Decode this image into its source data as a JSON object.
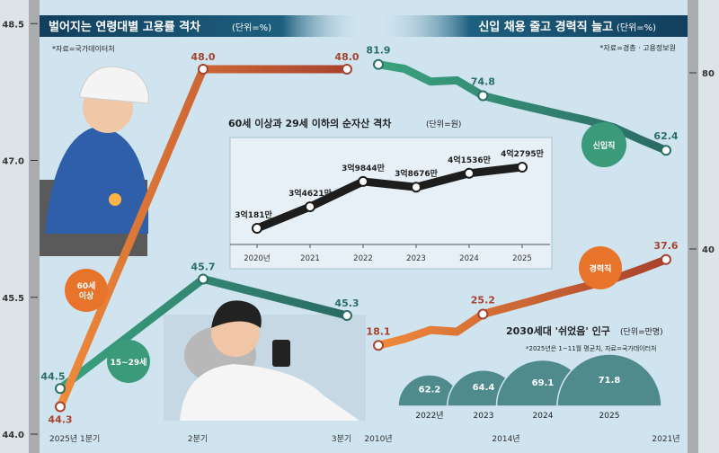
{
  "chart_data": [
    {
      "type": "line",
      "title": "벌어지는 연령대별 고용률 격차",
      "unit": "(단위=%)",
      "source": "*자료=국가데이터처",
      "categories": [
        "2025년 1분기",
        "2분기",
        "3분기"
      ],
      "series": [
        {
          "name": "60세 이상",
          "values": [
            44.3,
            48.0,
            48.0
          ],
          "labels": [
            "44.3",
            "48.0",
            "48.0"
          ],
          "color": "#e8732a"
        },
        {
          "name": "15~29세",
          "values": [
            44.5,
            45.7,
            45.3
          ],
          "labels": [
            "44.5",
            "45.7",
            "45.3"
          ],
          "color": "#3a9a7a"
        }
      ],
      "yticks": [
        "44.0",
        "45.5",
        "47.0",
        "48.5"
      ],
      "ylim": [
        44.0,
        48.5
      ],
      "axis_side": "left"
    },
    {
      "type": "line",
      "title": "신입 채용 줄고 경력직 늘고",
      "unit": "(단위=%)",
      "source": "*자료=경총 · 고용정보원",
      "x": [
        2010,
        2011,
        2012,
        2013,
        2014,
        2015,
        2016,
        2017,
        2018,
        2019,
        2020,
        2021
      ],
      "xticks": [
        "2010년",
        "2014년",
        "2021년"
      ],
      "series": [
        {
          "name": "신입직",
          "values": [
            81.9,
            80.9,
            78.0,
            78.3,
            74.8,
            73.3,
            71.9,
            70.5,
            69.2,
            67.6,
            64.9,
            62.4
          ],
          "labels": {
            "0": "81.9",
            "4": "74.8",
            "11": "62.4"
          },
          "color": "#3a9a7a"
        },
        {
          "name": "경력직",
          "values": [
            18.1,
            19.6,
            21.6,
            21.2,
            25.2,
            26.8,
            28.4,
            30.1,
            31.6,
            33.2,
            35.3,
            37.6
          ],
          "labels": {
            "0": "18.1",
            "4": "25.2",
            "11": "37.6"
          },
          "color": "#e8732a"
        }
      ],
      "yticks": [
        "40",
        "80"
      ],
      "axis_side": "right"
    },
    {
      "type": "line",
      "title": "60세 이상과 29세 이하의 순자산 격차",
      "unit": "(단위=원)",
      "categories": [
        "2020년",
        "2021",
        "2022",
        "2023",
        "2024",
        "2025"
      ],
      "values": [
        30181,
        34621,
        39844,
        38676,
        41536,
        42795
      ],
      "labels": [
        "3억181만",
        "3억4621만",
        "3억9844만",
        "3억8676만",
        "4억1536만",
        "4억2795만"
      ]
    },
    {
      "type": "bar",
      "title": "2030세대 '쉬었음' 인구",
      "unit": "(단위=만명)",
      "note": "*2025년은 1~11월 평균치, 자료=국가데이터처",
      "categories": [
        "2022년",
        "2023",
        "2024",
        "2025"
      ],
      "values": [
        62.2,
        64.4,
        69.1,
        71.8
      ],
      "labels": [
        "62.2",
        "64.4",
        "69.1",
        "71.8"
      ],
      "shape": "semicircle",
      "color": "#4f8a8c"
    }
  ]
}
